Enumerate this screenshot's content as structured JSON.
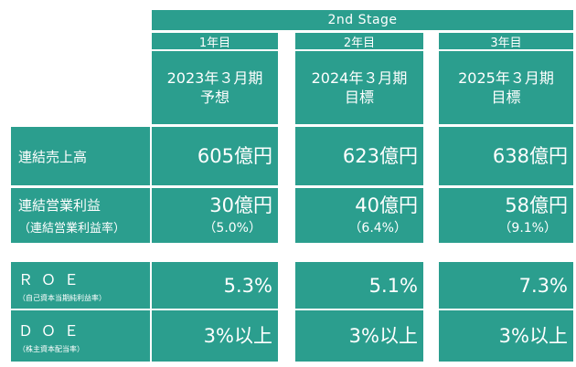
{
  "header": {
    "stage": "2nd Stage",
    "years": [
      {
        "label": "1年目",
        "period_line1": "2023年３月期",
        "period_line2": "予想"
      },
      {
        "label": "2年目",
        "period_line1": "2024年３月期",
        "period_line2": "目標"
      },
      {
        "label": "3年目",
        "period_line1": "2025年３月期",
        "period_line2": "目標"
      }
    ]
  },
  "rows": {
    "sales": {
      "label": "連結売上高",
      "values": [
        "605億円",
        "623億円",
        "638億円"
      ]
    },
    "op_profit": {
      "label": "連結営業利益",
      "sublabel": "（連結営業利益率）",
      "values": [
        "30億円",
        "40億円",
        "58億円"
      ],
      "rates": [
        "（5.0%）",
        "（6.4%）",
        "（9.1%）"
      ]
    },
    "roe": {
      "label": "ＲＯＥ",
      "sublabel": "（自己資本当期純利益率）",
      "values": [
        "5.3%",
        "5.1%",
        "7.3%"
      ]
    },
    "doe": {
      "label": "ＤＯＥ",
      "sublabel": "（株主資本配当率）",
      "values": [
        "3%以上",
        "3%以上",
        "3%以上"
      ]
    }
  }
}
